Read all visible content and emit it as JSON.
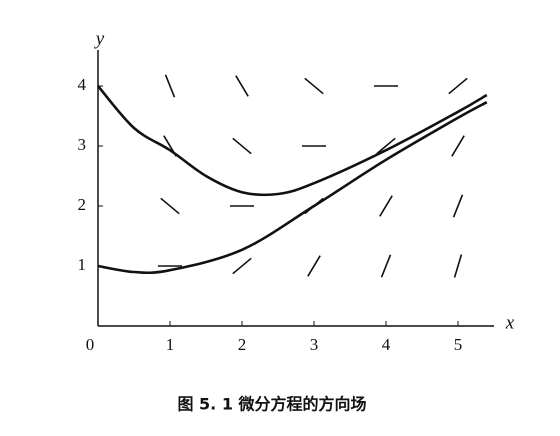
{
  "chart_data": {
    "type": "slopefield",
    "caption": "图 5. 1   微分方程的方向场",
    "x_label": "x",
    "y_label": "y",
    "xlim": [
      0,
      5.5
    ],
    "ylim": [
      0,
      4.6
    ],
    "xticks": [
      0,
      1,
      2,
      3,
      4,
      5
    ],
    "yticks": [
      1,
      2,
      3,
      4
    ],
    "field": {
      "x": [
        1,
        2,
        3,
        4,
        5,
        1,
        2,
        3,
        4,
        5,
        1,
        2,
        3,
        4,
        5,
        1,
        2,
        3,
        4,
        5
      ],
      "y": [
        1,
        1,
        1,
        1,
        1,
        2,
        2,
        2,
        2,
        2,
        3,
        3,
        3,
        3,
        3,
        4,
        4,
        4,
        4,
        4
      ],
      "slope": [
        0,
        1,
        2,
        3,
        4,
        -1,
        0,
        1,
        2,
        3,
        -2,
        -1,
        0,
        1,
        2,
        -3,
        -2,
        -1,
        0,
        1
      ],
      "color": "#111111"
    },
    "series": [
      {
        "color": "#111111",
        "x": [
          0,
          0.5,
          1,
          1.5,
          2,
          2.5,
          3,
          4,
          5,
          5.4
        ],
        "values": [
          4.0,
          3.3,
          2.93,
          2.5,
          2.23,
          2.2,
          2.38,
          2.93,
          3.57,
          3.85
        ]
      },
      {
        "color": "#111111",
        "x": [
          0,
          0.5,
          1,
          2,
          3,
          4,
          5,
          5.4
        ],
        "values": [
          1.0,
          0.9,
          0.93,
          1.27,
          2.0,
          2.77,
          3.47,
          3.73
        ]
      }
    ]
  }
}
